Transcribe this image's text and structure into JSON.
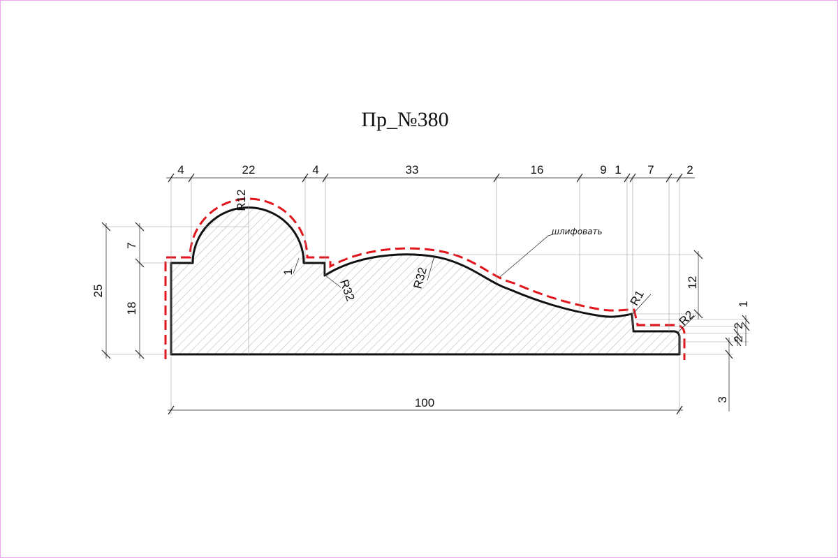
{
  "title": "Пр_№380",
  "note": "шлифовать",
  "colors": {
    "outline": "#111111",
    "sanding_line": "#e0161c",
    "hatch": "#888888",
    "frame": "#f3a6f0"
  },
  "dimensions": {
    "top": [
      "4",
      "22",
      "4",
      "33",
      "16",
      "9",
      "1",
      "7",
      "2"
    ],
    "total_width": "100",
    "left_total": "25",
    "left_upper": "7",
    "left_lower": "18",
    "right_12": "12",
    "right_1": "1",
    "right_2a": "2",
    "right_2b": "2",
    "right_3": "3",
    "step_1": "1"
  },
  "radii": {
    "bead": "R12",
    "cove_left": "R32",
    "wave": "R32",
    "small_1": "R1",
    "corner_2": "R2"
  }
}
